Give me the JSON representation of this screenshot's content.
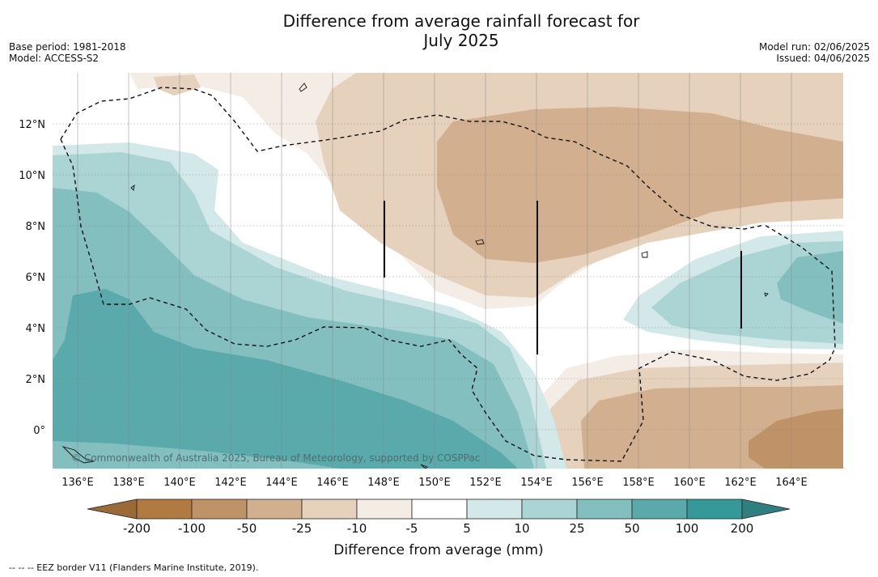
{
  "title": "Difference from average rainfall forecast for July 2025",
  "title_line1": "Difference from average rainfall forecast for",
  "title_line2": "July 2025",
  "base_period": "Base period: 1981-2018",
  "model": "Model: ACCESS-S2",
  "model_run": "Model run: 02/06/2025",
  "issued": "Issued: 04/06/2025",
  "copyright": "© Commonwealth of Australia 2025, Bureau of Meteorology, supported by COSPPac",
  "footnote": "-- -- -- EEZ border V11 (Flanders Marine Institute, 2019).",
  "map": {
    "lon_range": [
      135,
      166
    ],
    "lat_range": [
      -1.5,
      14
    ],
    "lon_ticks": [
      "136°E",
      "138°E",
      "140°E",
      "142°E",
      "144°E",
      "146°E",
      "148°E",
      "150°E",
      "152°E",
      "154°E",
      "156°E",
      "158°E",
      "160°E",
      "162°E",
      "164°E"
    ],
    "lat_ticks": [
      "12°N",
      "10°N",
      "8°N",
      "6°N",
      "4°N",
      "2°N",
      "0°"
    ]
  },
  "legend": {
    "title": "Difference from average (mm)",
    "tick_labels": [
      "-200",
      "-100",
      "-50",
      "-25",
      "-10",
      "-5",
      "5",
      "10",
      "25",
      "50",
      "100",
      "200"
    ],
    "colors": [
      "#b07a40",
      "#bf9268",
      "#d2b08f",
      "#e5d1bc",
      "#f3ede6",
      "#ffffff",
      "#d3e8e8",
      "#aad5d4",
      "#84bfbf",
      "#5aa9ab",
      "#35999a"
    ],
    "under_color": "#9c6a35",
    "over_color": "#2e7f7f"
  }
}
